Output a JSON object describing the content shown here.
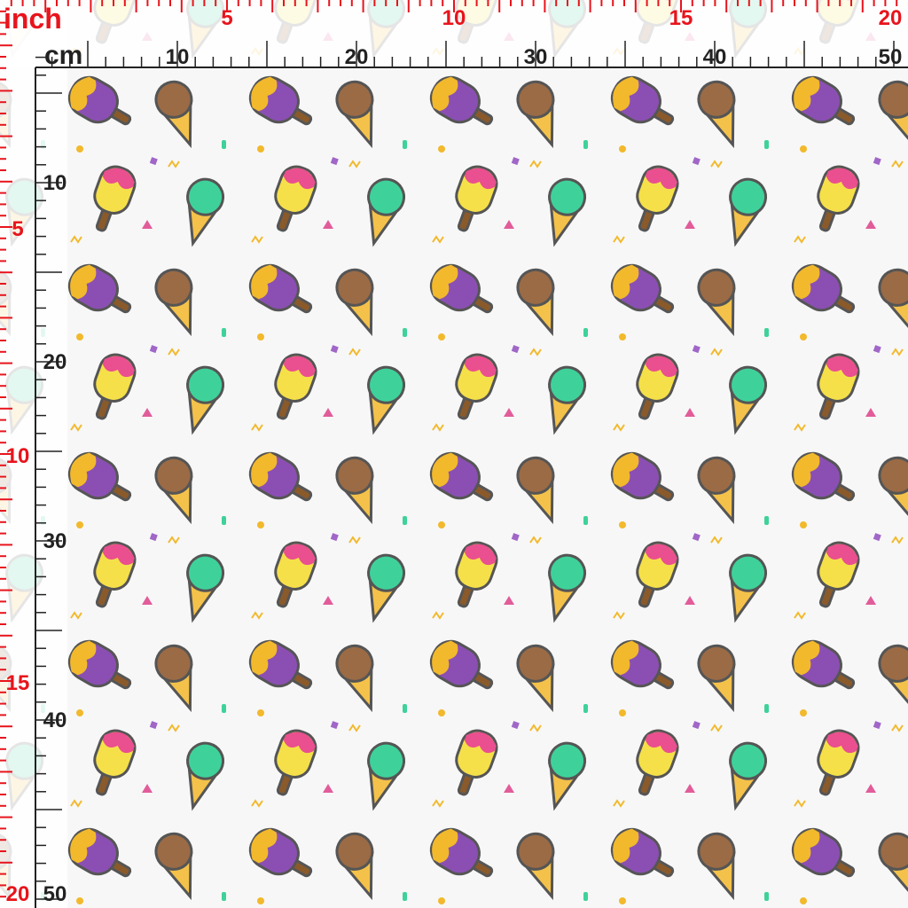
{
  "ruler_top": {
    "inch_label": "inch",
    "inch_numbers": [
      5,
      10,
      15,
      20
    ],
    "cm_label": "cm",
    "cm_numbers": [
      10,
      20,
      30,
      40,
      50
    ]
  },
  "ruler_left": {
    "inch_numbers": [
      5,
      10,
      15,
      20
    ],
    "cm_numbers": [
      10,
      20,
      30,
      40,
      50
    ]
  }
}
